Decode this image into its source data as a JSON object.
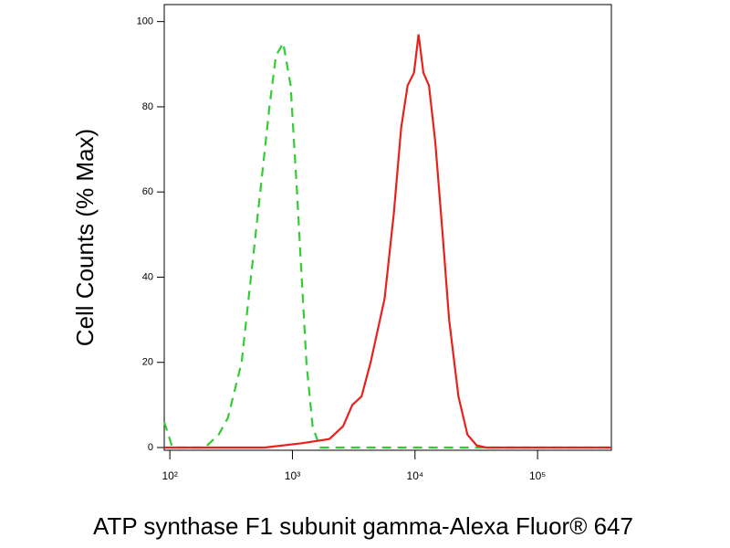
{
  "chart_data": {
    "type": "line",
    "xlabel": "ATP synthase F1 subunit gamma-Alexa Fluor® 647",
    "ylabel": "Cell Counts (% Max)",
    "xscale": "log",
    "xlim": [
      90,
      400000
    ],
    "ylim": [
      0,
      104
    ],
    "xticks": [
      {
        "value": 100,
        "label": "10²"
      },
      {
        "value": 1000,
        "label": "10³"
      },
      {
        "value": 10000,
        "label": "10⁴"
      },
      {
        "value": 100000,
        "label": "10⁵"
      }
    ],
    "yticks": [
      0,
      20,
      40,
      60,
      80,
      100
    ],
    "series": [
      {
        "color": "#33cc33",
        "linestyle": "dashed",
        "x": [
          90,
          105,
          136,
          193,
          250,
          298,
          385,
          459,
          546,
          649,
          733,
          841,
          966,
          1090,
          1190,
          1300,
          1460,
          1680,
          400000
        ],
        "values": [
          6,
          0,
          0,
          0,
          3,
          7,
          20,
          40,
          60,
          80,
          92,
          95,
          85,
          60,
          40,
          20,
          5,
          0,
          0
        ]
      },
      {
        "color": "#e8211c",
        "linestyle": "solid",
        "x": [
          90,
          594,
          1190,
          2000,
          2590,
          3080,
          3660,
          4350,
          5650,
          6720,
          7710,
          8710,
          9820,
          10700,
          11700,
          13000,
          14600,
          16800,
          19000,
          22600,
          26800,
          31900,
          37900,
          400000
        ],
        "values": [
          0,
          0,
          1,
          2,
          5,
          10,
          12,
          20,
          35,
          55,
          75,
          85,
          88,
          97,
          88,
          85,
          72,
          50,
          30,
          12,
          3,
          0.5,
          0,
          0
        ]
      }
    ]
  }
}
